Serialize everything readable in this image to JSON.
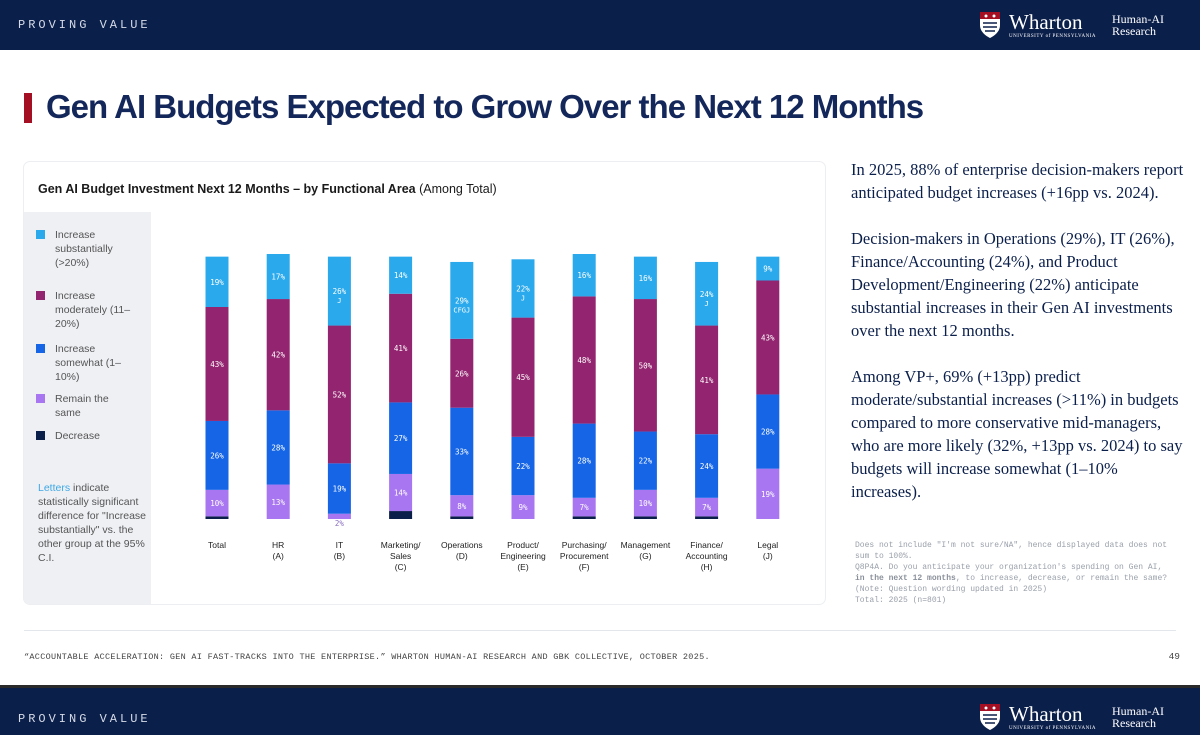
{
  "header": {
    "section": "PROVING VALUE",
    "brand_name": "Wharton",
    "brand_sub": "UNIVERSITY of PENNSYLVANIA",
    "lab_line1": "Human-AI",
    "lab_line2": "Research"
  },
  "page": {
    "title": "Gen AI Budgets Expected to Grow Over the Next 12 Months",
    "accent": "#a50f23",
    "navy": "#0b1f4b"
  },
  "chart_title": {
    "bold": "Gen AI Budget Investment Next 12 Months – by Functional Area",
    "suffix": " (Among Total)"
  },
  "legend": {
    "items": [
      {
        "label": "Increase substantially (>20%)",
        "color": "#2aa9ec"
      },
      {
        "label": "Increase moderately (11–20%)",
        "color": "#93246f"
      },
      {
        "label": "Increase somewhat (1–10%)",
        "color": "#1565e6"
      },
      {
        "label": "Remain the same",
        "color": "#a876f0"
      },
      {
        "label": "Decrease",
        "color": "#0b1f4b"
      }
    ],
    "note_highlight": "Letters",
    "note_rest": " indicate statistically significant difference for \"Increase substantially\" vs. the other group at the 95% C.I."
  },
  "chart_data": {
    "type": "bar",
    "stacked": true,
    "title": "Gen AI Budget Investment Next 12 Months – by Functional Area (Among Total)",
    "categories": [
      "Total",
      "HR (A)",
      "IT (B)",
      "Marketing/ Sales (C)",
      "Operations (D)",
      "Product/ Engineering (E)",
      "Purchasing/ Procurement (F)",
      "Management (G)",
      "Finance/ Accounting (H)",
      "Legal (J)"
    ],
    "category_lines": [
      [
        "Total"
      ],
      [
        "HR",
        "(A)"
      ],
      [
        "IT",
        "(B)"
      ],
      [
        "Marketing/",
        "Sales",
        "(C)"
      ],
      [
        "Operations",
        "(D)"
      ],
      [
        "Product/",
        "Engineering",
        "(E)"
      ],
      [
        "Purchasing/",
        "Procurement",
        "(F)"
      ],
      [
        "Management",
        "(G)"
      ],
      [
        "Finance/",
        "Accounting",
        "(H)"
      ],
      [
        "Legal",
        "(J)"
      ]
    ],
    "series": [
      {
        "name": "Decrease",
        "color": "#0b1f4b",
        "values": [
          1,
          0,
          0,
          3,
          1,
          0,
          1,
          1,
          1,
          0
        ]
      },
      {
        "name": "Remain the same",
        "color": "#a876f0",
        "values": [
          10,
          13,
          2,
          14,
          8,
          9,
          7,
          10,
          7,
          19
        ],
        "labels": [
          "10%",
          "13%",
          "2%",
          "14%",
          "8%",
          "9%",
          "7%",
          "10%",
          "7%",
          "19%"
        ]
      },
      {
        "name": "Increase somewhat (1–10%)",
        "color": "#1565e6",
        "values": [
          26,
          28,
          19,
          27,
          33,
          22,
          28,
          22,
          24,
          28
        ],
        "labels": [
          "26%",
          "28%",
          "19%",
          "27%",
          "33%",
          "22%",
          "28%",
          "22%",
          "24%",
          "28%"
        ]
      },
      {
        "name": "Increase moderately (11–20%)",
        "color": "#93246f",
        "values": [
          43,
          42,
          52,
          41,
          26,
          45,
          48,
          50,
          41,
          43
        ],
        "labels": [
          "43%",
          "42%",
          "52%",
          "41%",
          "26%",
          "45%",
          "48%",
          "50%",
          "41%",
          "43%"
        ]
      },
      {
        "name": "Increase substantially (>20%)",
        "color": "#2aa9ec",
        "values": [
          19,
          17,
          26,
          14,
          29,
          22,
          16,
          16,
          24,
          9
        ],
        "labels": [
          "19%",
          "17%",
          "26%",
          "14%",
          "29%",
          "22%",
          "16%",
          "16%",
          "24%",
          "9%"
        ],
        "sig": [
          "",
          "",
          "J",
          "",
          "CFGJ",
          "J",
          "",
          "",
          "J",
          ""
        ]
      }
    ],
    "ylim": [
      0,
      100
    ],
    "xlabel": "",
    "ylabel": ""
  },
  "narrative": {
    "p1": "In 2025, 88% of enterprise decision-makers report anticipated budget increases (+16pp vs. 2024).",
    "p2": "Decision-makers in Operations (29%), IT (26%), Finance/Accounting (24%), and Product Development/Engineering (22%) anticipate substantial increases in their Gen AI investments over the next 12 months.",
    "p3": "Among VP+, 69% (+13pp) predict moderate/substantial increases (>11%) in budgets compared to more conservative mid-managers, who are more likely (32%, +13pp vs. 2024) to say budgets will increase somewhat (1–10% increases)."
  },
  "footnote": {
    "line1": "Does not include \"I'm not sure/NA\", hence displayed data does not sum to 100%.",
    "q_pre": "Q8P4A. Do you anticipate your organization's spending on Gen AI, ",
    "q_bold": "in the next 12 months",
    "q_post": ", to increase, decrease, or remain the same? (Note: Question wording updated in 2025)",
    "base": "Total: 2025 (n=801)"
  },
  "footer": {
    "source": "“ACCOUNTABLE ACCELERATION: GEN AI FAST-TRACKS INTO THE ENTERPRISE.” WHARTON HUMAN-AI RESEARCH AND GBK COLLECTIVE, OCTOBER 2025.",
    "page_number": "49"
  }
}
